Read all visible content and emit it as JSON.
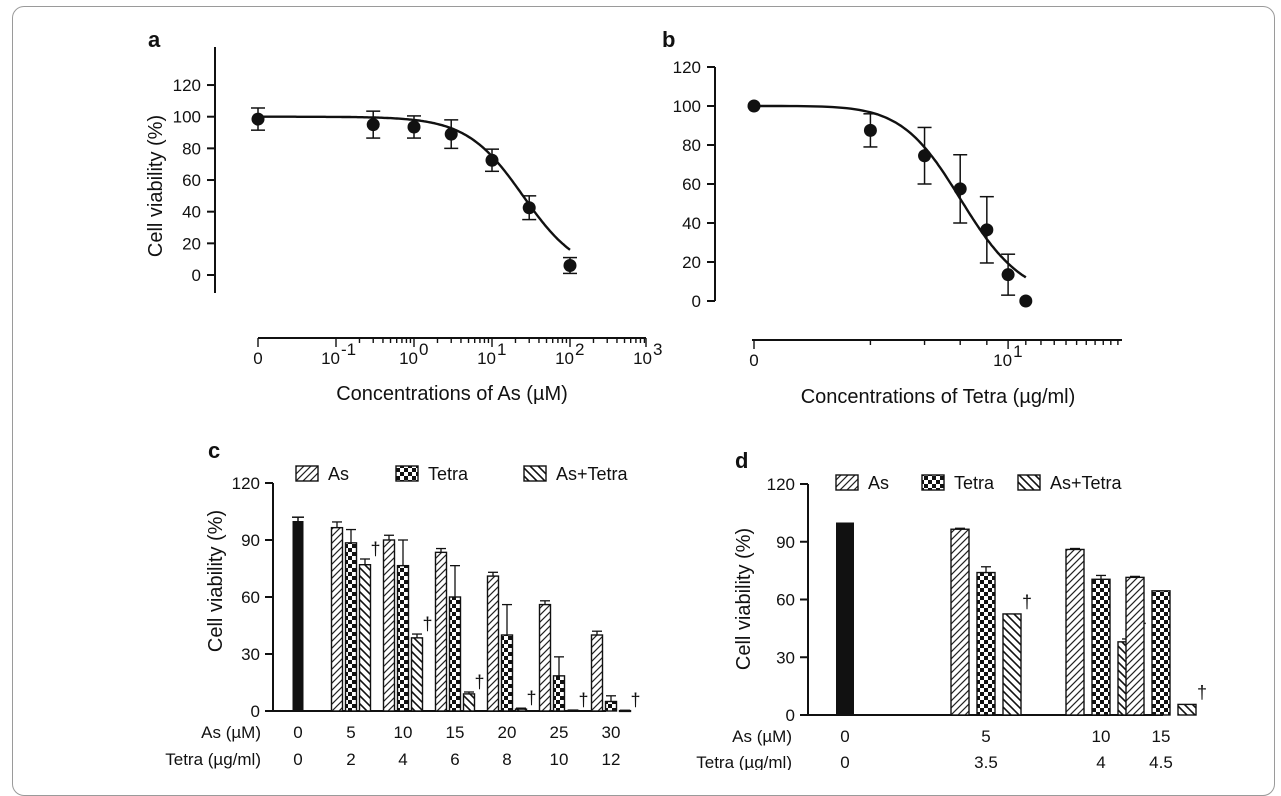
{
  "chart_data": [
    {
      "panel": "a",
      "type": "scatter",
      "xlabel": "Concentrations of As (µM)",
      "ylabel": "Cell viability (%)",
      "xscale": "log",
      "yticks": [
        "0",
        "20",
        "40",
        "60",
        "80",
        "100",
        "120"
      ],
      "xticks": [
        "0",
        "10",
        "10",
        "10",
        "10",
        "10"
      ],
      "xtick_exponents": [
        "",
        "-1",
        "0",
        "1",
        "2",
        "3"
      ],
      "ylim": [
        0,
        120
      ],
      "points": [
        {
          "x": 0,
          "y": 98.5,
          "err": 7
        },
        {
          "x": 0.3,
          "y": 95,
          "err": 8.5
        },
        {
          "x": 1,
          "y": 93.5,
          "err": 7
        },
        {
          "x": 3,
          "y": 89,
          "err": 9
        },
        {
          "x": 10,
          "y": 72.5,
          "err": 7
        },
        {
          "x": 30,
          "y": 42.5,
          "err": 7.5
        },
        {
          "x": 100,
          "y": 6,
          "err": 5
        }
      ],
      "fit": {
        "top": 100,
        "bottom": 0,
        "ic50": 25,
        "hill": 1.2
      }
    },
    {
      "panel": "b",
      "type": "scatter",
      "xlabel": "Concentrations of Tetra (µg/ml)",
      "ylabel": "",
      "xscale": "log",
      "yticks": [
        "0",
        "20",
        "40",
        "60",
        "80",
        "100",
        "120"
      ],
      "xticks": [
        "0",
        "10"
      ],
      "xtick_exponents": [
        "",
        "1"
      ],
      "ylim": [
        0,
        120
      ],
      "points": [
        {
          "x": 0,
          "y": 100,
          "err": 0
        },
        {
          "x": 2,
          "y": 87.5,
          "err": 8.5
        },
        {
          "x": 4,
          "y": 74.5,
          "err": 14.5
        },
        {
          "x": 6,
          "y": 57.5,
          "err": 17.5
        },
        {
          "x": 8,
          "y": 36.5,
          "err": 17
        },
        {
          "x": 10,
          "y": 13.5,
          "err": 10.5
        },
        {
          "x": 12,
          "y": 0,
          "err": 0
        }
      ],
      "fit": {
        "top": 100,
        "bottom": 0,
        "ic50": 6.2,
        "hill": 3
      }
    },
    {
      "panel": "c",
      "type": "bar",
      "ylabel": "Cell viability (%)",
      "ylim": [
        0,
        120
      ],
      "yticks": [
        "0",
        "30",
        "60",
        "90",
        "120"
      ],
      "row_labels": [
        "As (µM)",
        "Tetra (µg/ml)"
      ],
      "categories_as": [
        "0",
        "5",
        "10",
        "15",
        "20",
        "25",
        "30"
      ],
      "categories_tetra": [
        "0",
        "2",
        "4",
        "6",
        "8",
        "10",
        "12"
      ],
      "control": {
        "value": 100,
        "err": 2
      },
      "series": [
        {
          "name": "As",
          "values": [
            96.5,
            90,
            83.5,
            71,
            56,
            40
          ],
          "errs": [
            3,
            2.5,
            2,
            2,
            2,
            2
          ]
        },
        {
          "name": "Tetra",
          "values": [
            88.5,
            76.5,
            60,
            40,
            18.5,
            5
          ],
          "errs": [
            7,
            13.5,
            16.5,
            16,
            10,
            3
          ]
        },
        {
          "name": "As+Tetra",
          "values": [
            77,
            38.5,
            9,
            1,
            0.3,
            0.2
          ],
          "errs": [
            3,
            2,
            1,
            0.5,
            0.2,
            0.2
          ]
        }
      ],
      "marker": "†"
    },
    {
      "panel": "d",
      "type": "bar",
      "ylabel": "Cell viability (%)",
      "ylim": [
        0,
        120
      ],
      "yticks": [
        "0",
        "30",
        "60",
        "90",
        "120"
      ],
      "row_labels": [
        "As (µM)",
        "Tetra (µg/ml)"
      ],
      "categories_as": [
        "0",
        "5",
        "10",
        "15"
      ],
      "categories_tetra": [
        "0",
        "3.5",
        "4",
        "4.5"
      ],
      "control": {
        "value": 100,
        "err": 0
      },
      "series": [
        {
          "name": "As",
          "values": [
            96.5,
            86,
            71.5
          ],
          "errs": [
            0.5,
            0.5,
            0.5
          ]
        },
        {
          "name": "Tetra",
          "values": [
            74,
            70.5,
            64.5
          ],
          "errs": [
            3,
            2,
            0
          ]
        },
        {
          "name": "As+Tetra",
          "values": [
            52.5,
            38,
            5.5
          ],
          "errs": [
            0,
            1.5,
            0
          ]
        }
      ],
      "marker": "†"
    }
  ]
}
